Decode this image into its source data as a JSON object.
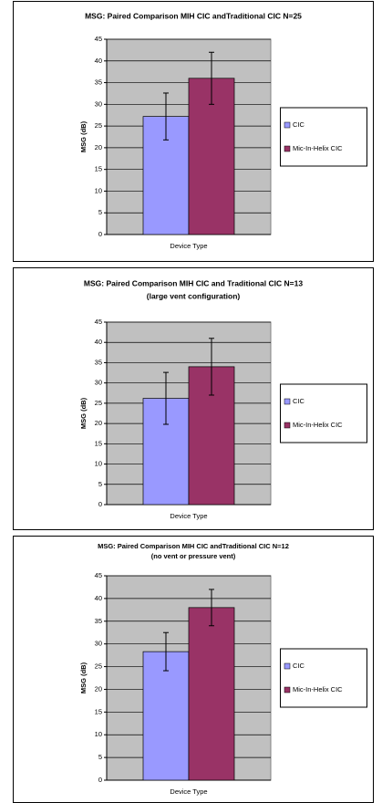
{
  "chart_data": [
    {
      "type": "bar",
      "title": "MSG: Paired Comparison MIH CIC andTraditional CIC N=25",
      "ylabel": "MSG (dB)",
      "xlabel": "Device Type",
      "categories": [
        null
      ],
      "series": [
        {
          "name": "CIC",
          "color": "#9999ff",
          "values": [
            27.2
          ],
          "errors": [
            5.4
          ]
        },
        {
          "name": "Mic-In-Helix CIC",
          "color": "#993366",
          "values": [
            36
          ],
          "errors": [
            6
          ]
        }
      ],
      "ylim": [
        0,
        45
      ],
      "yticks": [
        0,
        5,
        10,
        15,
        20,
        25,
        30,
        35,
        40,
        45
      ],
      "grid": true,
      "legend": "right"
    },
    {
      "type": "bar",
      "title": "MSG: Paired Comparison MIH CIC and Traditional CIC N=13",
      "subtitle": "(large vent configuration)",
      "ylabel": "MSG (dB)",
      "xlabel": "Device Type",
      "categories": [
        null
      ],
      "series": [
        {
          "name": "CIC",
          "color": "#9999ff",
          "values": [
            26.2
          ],
          "errors": [
            6.4
          ]
        },
        {
          "name": "Mic-In-Helix CIC",
          "color": "#993366",
          "values": [
            34
          ],
          "errors": [
            7
          ]
        }
      ],
      "ylim": [
        0,
        45
      ],
      "yticks": [
        0,
        5,
        10,
        15,
        20,
        25,
        30,
        35,
        40,
        45
      ],
      "grid": true,
      "legend": "right"
    },
    {
      "type": "bar",
      "title": "MSG: Paired Comparison MIH CIC andTraditional  CIC N=12",
      "subtitle": "(no vent or pressure vent)",
      "ylabel": "MSG (dB)",
      "xlabel": "Device Type",
      "categories": [
        null
      ],
      "series": [
        {
          "name": "CIC",
          "color": "#9999ff",
          "values": [
            28.3
          ],
          "errors": [
            4.2
          ]
        },
        {
          "name": "Mic-In-Helix CIC",
          "color": "#993366",
          "values": [
            38
          ],
          "errors": [
            4
          ]
        }
      ],
      "ylim": [
        0,
        45
      ],
      "yticks": [
        0,
        5,
        10,
        15,
        20,
        25,
        30,
        35,
        40,
        45
      ],
      "grid": true,
      "legend": "right"
    }
  ]
}
